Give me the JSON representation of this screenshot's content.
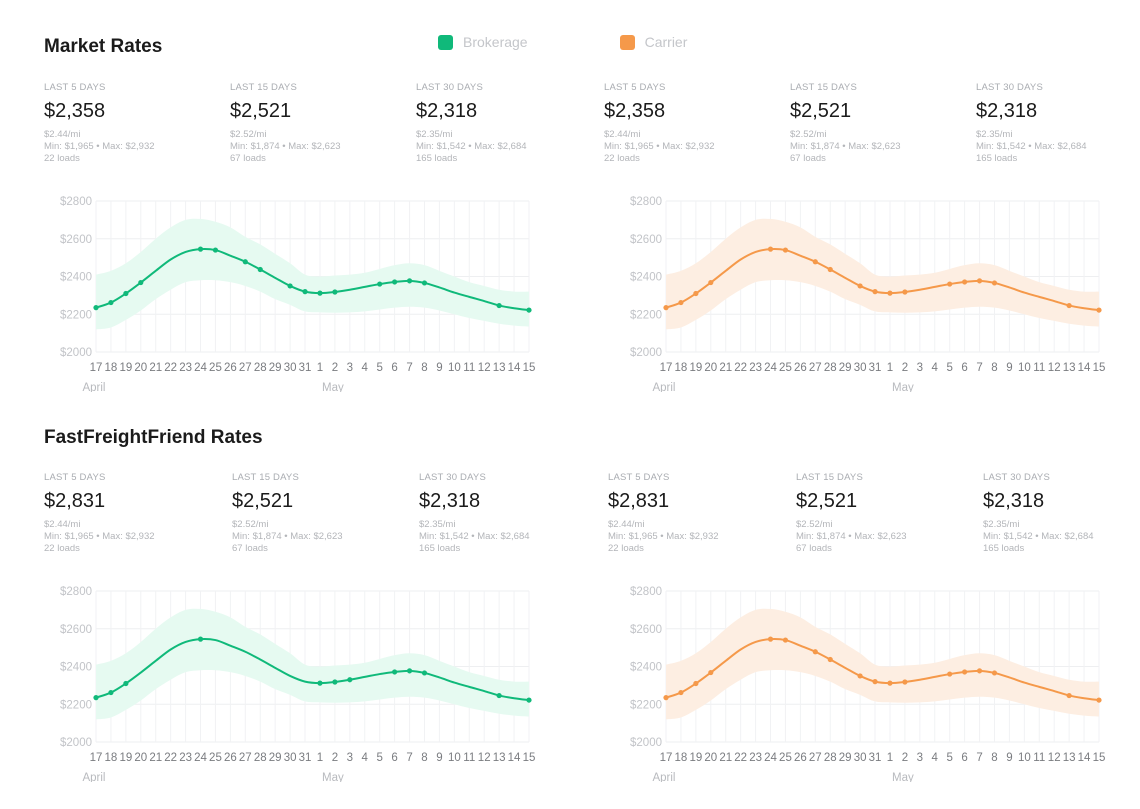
{
  "colors": {
    "brokerage": "#10b97a",
    "carrier": "#f5994a",
    "brokerage_band": "#e6faf1",
    "carrier_band": "#fdeee2"
  },
  "legend": [
    {
      "label": "Brokerage",
      "color": "#10b97a"
    },
    {
      "label": "Carrier",
      "color": "#f5994a"
    }
  ],
  "sections": [
    {
      "title": "Market Rates",
      "panels": [
        {
          "stats": [
            {
              "period": "LAST 5 DAYS",
              "value": "$2,358",
              "per_mile": "$2.44/mi",
              "range": "Min: $1,965 • Max: $2,932",
              "loads": "22 loads"
            },
            {
              "period": "LAST 15 DAYS",
              "value": "$2,521",
              "per_mile": "$2.52/mi",
              "range": "Min: $1,874 • Max: $2,623",
              "loads": "67 loads"
            },
            {
              "period": "LAST 30 DAYS",
              "value": "$2,318",
              "per_mile": "$2.35/mi",
              "range": "Min: $1,542 • Max: $2,684",
              "loads": "165 loads"
            }
          ]
        },
        {
          "stats": [
            {
              "period": "LAST 5 DAYS",
              "value": "$2,358",
              "per_mile": "$2.44/mi",
              "range": "Min: $1,965 • Max: $2,932",
              "loads": "22 loads"
            },
            {
              "period": "LAST 15 DAYS",
              "value": "$2,521",
              "per_mile": "$2.52/mi",
              "range": "Min: $1,874 • Max: $2,623",
              "loads": "67 loads"
            },
            {
              "period": "LAST 30 DAYS",
              "value": "$2,318",
              "per_mile": "$2.35/mi",
              "range": "Min: $1,542 • Max: $2,684",
              "loads": "165 loads"
            }
          ]
        }
      ]
    },
    {
      "title": "FastFreightFriend Rates",
      "panels": [
        {
          "stats": [
            {
              "period": "LAST 5 DAYS",
              "value": "$2,831",
              "per_mile": "$2.44/mi",
              "range": "Min: $1,965 • Max: $2,932",
              "loads": "22 loads"
            },
            {
              "period": "LAST 15 DAYS",
              "value": "$2,521",
              "per_mile": "$2.52/mi",
              "range": "Min: $1,874 • Max: $2,623",
              "loads": "67 loads"
            },
            {
              "period": "LAST 30 DAYS",
              "value": "$2,318",
              "per_mile": "$2.35/mi",
              "range": "Min: $1,542 • Max: $2,684",
              "loads": "165 loads"
            }
          ]
        },
        {
          "stats": [
            {
              "period": "LAST 5 DAYS",
              "value": "$2,831",
              "per_mile": "$2.44/mi",
              "range": "Min: $1,965 • Max: $2,932",
              "loads": "22 loads"
            },
            {
              "period": "LAST 15 DAYS",
              "value": "$2,521",
              "per_mile": "$2.52/mi",
              "range": "Min: $1,874 • Max: $2,623",
              "loads": "67 loads"
            },
            {
              "period": "LAST 30 DAYS",
              "value": "$2,318",
              "per_mile": "$2.35/mi",
              "range": "Min: $1,542 • Max: $2,684",
              "loads": "165 loads"
            }
          ]
        }
      ]
    }
  ],
  "chart_data": [
    {
      "type": "line",
      "section": "Market Rates",
      "series_name": "Brokerage",
      "x": [
        "17",
        "18",
        "19",
        "20",
        "21",
        "22",
        "23",
        "24",
        "25",
        "26",
        "27",
        "28",
        "29",
        "30",
        "31",
        "1",
        "2",
        "3",
        "4",
        "5",
        "6",
        "7",
        "8",
        "9",
        "10",
        "11",
        "12",
        "13",
        "14",
        "15"
      ],
      "month_labels": [
        {
          "label": "April",
          "at": "17"
        },
        {
          "label": "May",
          "at": "2"
        }
      ],
      "ylim": [
        2000,
        2800
      ],
      "yticks": [
        "$2000",
        "$2200",
        "$2400",
        "$2600",
        "$2800"
      ],
      "values": [
        2235,
        2262,
        2310,
        2368,
        2430,
        2490,
        2530,
        2545,
        2540,
        2510,
        2478,
        2437,
        2393,
        2350,
        2320,
        2312,
        2318,
        2330,
        2345,
        2360,
        2371,
        2377,
        2366,
        2342,
        2315,
        2292,
        2270,
        2246,
        2232,
        2222
      ],
      "markers": [
        0,
        1,
        2,
        3,
        7,
        8,
        10,
        11,
        13,
        14,
        15,
        16,
        19,
        20,
        21,
        22,
        27,
        29
      ],
      "band_upper": [
        2410,
        2430,
        2470,
        2530,
        2600,
        2660,
        2700,
        2705,
        2690,
        2660,
        2610,
        2570,
        2520,
        2470,
        2410,
        2400,
        2405,
        2410,
        2420,
        2440,
        2460,
        2470,
        2460,
        2430,
        2400,
        2370,
        2350,
        2330,
        2320,
        2320
      ],
      "band_lower": [
        2120,
        2130,
        2170,
        2220,
        2280,
        2330,
        2370,
        2380,
        2380,
        2370,
        2350,
        2320,
        2280,
        2250,
        2215,
        2210,
        2208,
        2210,
        2215,
        2225,
        2235,
        2240,
        2235,
        2220,
        2200,
        2180,
        2165,
        2150,
        2140,
        2135
      ],
      "grid": true
    },
    {
      "type": "line",
      "section": "Market Rates",
      "series_name": "Carrier",
      "x": [
        "17",
        "18",
        "19",
        "20",
        "21",
        "22",
        "23",
        "24",
        "25",
        "26",
        "27",
        "28",
        "29",
        "30",
        "31",
        "1",
        "2",
        "3",
        "4",
        "5",
        "6",
        "7",
        "8",
        "9",
        "10",
        "11",
        "12",
        "13",
        "14",
        "15"
      ],
      "month_labels": [
        {
          "label": "April",
          "at": "17"
        },
        {
          "label": "May",
          "at": "2"
        }
      ],
      "ylim": [
        2000,
        2800
      ],
      "yticks": [
        "$2000",
        "$2200",
        "$2400",
        "$2600",
        "$2800"
      ],
      "values": [
        2235,
        2262,
        2310,
        2368,
        2430,
        2490,
        2530,
        2545,
        2540,
        2510,
        2478,
        2437,
        2393,
        2350,
        2320,
        2312,
        2318,
        2330,
        2345,
        2360,
        2371,
        2377,
        2366,
        2342,
        2315,
        2292,
        2270,
        2246,
        2232,
        2222
      ],
      "markers": [
        0,
        1,
        2,
        3,
        7,
        8,
        10,
        11,
        13,
        14,
        15,
        16,
        19,
        20,
        21,
        22,
        27,
        29
      ],
      "band_upper": [
        2410,
        2430,
        2470,
        2530,
        2600,
        2660,
        2700,
        2705,
        2690,
        2660,
        2610,
        2570,
        2520,
        2470,
        2410,
        2400,
        2405,
        2410,
        2420,
        2440,
        2460,
        2470,
        2460,
        2430,
        2400,
        2370,
        2350,
        2330,
        2320,
        2320
      ],
      "band_lower": [
        2120,
        2130,
        2170,
        2220,
        2280,
        2330,
        2370,
        2380,
        2380,
        2370,
        2350,
        2320,
        2280,
        2250,
        2215,
        2210,
        2208,
        2210,
        2215,
        2225,
        2235,
        2240,
        2235,
        2220,
        2200,
        2180,
        2165,
        2150,
        2140,
        2135
      ],
      "grid": true
    },
    {
      "type": "line",
      "section": "FastFreightFriend Rates",
      "series_name": "Brokerage",
      "x": [
        "17",
        "18",
        "19",
        "20",
        "21",
        "22",
        "23",
        "24",
        "25",
        "26",
        "27",
        "28",
        "29",
        "30",
        "31",
        "1",
        "2",
        "3",
        "4",
        "5",
        "6",
        "7",
        "8",
        "9",
        "10",
        "11",
        "12",
        "13",
        "14",
        "15"
      ],
      "month_labels": [
        {
          "label": "April",
          "at": "17"
        },
        {
          "label": "May",
          "at": "2"
        }
      ],
      "ylim": [
        2000,
        2800
      ],
      "yticks": [
        "$2000",
        "$2200",
        "$2400",
        "$2600",
        "$2800"
      ],
      "values": [
        2235,
        2262,
        2310,
        2368,
        2430,
        2490,
        2530,
        2545,
        2540,
        2510,
        2478,
        2437,
        2393,
        2350,
        2320,
        2312,
        2318,
        2330,
        2345,
        2360,
        2371,
        2377,
        2366,
        2342,
        2315,
        2292,
        2270,
        2246,
        2232,
        2222
      ],
      "markers": [
        0,
        1,
        2,
        7,
        15,
        16,
        17,
        20,
        21,
        22,
        27,
        29
      ],
      "band_upper": [
        2410,
        2430,
        2470,
        2530,
        2600,
        2660,
        2700,
        2705,
        2690,
        2660,
        2610,
        2570,
        2520,
        2470,
        2410,
        2400,
        2405,
        2410,
        2420,
        2440,
        2460,
        2470,
        2460,
        2430,
        2400,
        2370,
        2350,
        2330,
        2320,
        2320
      ],
      "band_lower": [
        2120,
        2130,
        2170,
        2220,
        2280,
        2330,
        2370,
        2380,
        2380,
        2370,
        2350,
        2320,
        2280,
        2250,
        2215,
        2210,
        2208,
        2210,
        2215,
        2225,
        2235,
        2240,
        2235,
        2220,
        2200,
        2180,
        2165,
        2150,
        2140,
        2135
      ],
      "grid": true
    },
    {
      "type": "line",
      "section": "FastFreightFriend Rates",
      "series_name": "Carrier",
      "x": [
        "17",
        "18",
        "19",
        "20",
        "21",
        "22",
        "23",
        "24",
        "25",
        "26",
        "27",
        "28",
        "29",
        "30",
        "31",
        "1",
        "2",
        "3",
        "4",
        "5",
        "6",
        "7",
        "8",
        "9",
        "10",
        "11",
        "12",
        "13",
        "14",
        "15"
      ],
      "month_labels": [
        {
          "label": "April",
          "at": "17"
        },
        {
          "label": "May",
          "at": "2"
        }
      ],
      "ylim": [
        2000,
        2800
      ],
      "yticks": [
        "$2000",
        "$2200",
        "$2400",
        "$2600",
        "$2800"
      ],
      "values": [
        2235,
        2262,
        2310,
        2368,
        2430,
        2490,
        2530,
        2545,
        2540,
        2510,
        2478,
        2437,
        2393,
        2350,
        2320,
        2312,
        2318,
        2330,
        2345,
        2360,
        2371,
        2377,
        2366,
        2342,
        2315,
        2292,
        2270,
        2246,
        2232,
        2222
      ],
      "markers": [
        0,
        1,
        2,
        3,
        7,
        8,
        10,
        11,
        13,
        14,
        15,
        16,
        19,
        20,
        21,
        22,
        27,
        29
      ],
      "band_upper": [
        2410,
        2430,
        2470,
        2530,
        2600,
        2660,
        2700,
        2705,
        2690,
        2660,
        2610,
        2570,
        2520,
        2470,
        2410,
        2400,
        2405,
        2410,
        2420,
        2440,
        2460,
        2470,
        2460,
        2430,
        2400,
        2370,
        2350,
        2330,
        2320,
        2320
      ],
      "band_lower": [
        2120,
        2130,
        2170,
        2220,
        2280,
        2330,
        2370,
        2380,
        2380,
        2370,
        2350,
        2320,
        2280,
        2250,
        2215,
        2210,
        2208,
        2210,
        2215,
        2225,
        2235,
        2240,
        2235,
        2220,
        2200,
        2180,
        2165,
        2150,
        2140,
        2135
      ],
      "grid": true
    }
  ]
}
